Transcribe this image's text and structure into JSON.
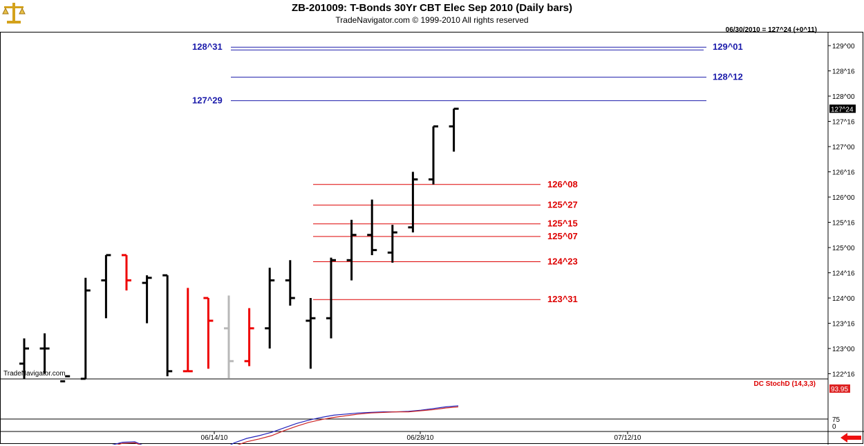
{
  "header": {
    "title": "ZB-201009:  T-Bonds 30Yr CBT Elec Sep 2010  (Daily bars)",
    "subtitle": "TradeNavigator.com © 1999-2010 All rights reserved",
    "status": "06/30/2010 = 127^24 (+0^11)"
  },
  "watermark": "TradeNavigator.com",
  "icons": {
    "logo": "gold-scale-icon",
    "nav_arrow": "red-left-arrow-icon"
  },
  "colors": {
    "up": "#000000",
    "down": "#ee0000",
    "neutral": "#b8b8b8",
    "green": "#22cc22",
    "blue_level": "#1a1aaa",
    "red_level": "#dd0000",
    "stoch_k": "#2222bb",
    "stoch_d": "#cc2222"
  },
  "chart_data": {
    "type": "ohlc",
    "price_unit": "32nds",
    "y_ticks": [
      "129^00",
      "128^16",
      "128^00",
      "127^16",
      "127^00",
      "126^16",
      "126^00",
      "125^16",
      "125^00",
      "124^16",
      "124^00",
      "123^16",
      "123^00",
      "122^16"
    ],
    "y_tick_values": [
      129,
      128.5,
      128,
      127.5,
      127,
      126.5,
      126,
      125.5,
      125,
      124.5,
      124,
      123.5,
      123,
      122.5
    ],
    "last_price_label": "127^24",
    "last_price": 127.75,
    "x_labels": [
      "06/14/10",
      "06/28/10",
      "07/12/10"
    ],
    "bars": [
      {
        "o": 122.7,
        "h": 123.2,
        "l": 122.4,
        "c": 123.0,
        "col": "up"
      },
      {
        "o": 123.0,
        "h": 123.3,
        "l": 122.5,
        "c": 123.0,
        "col": "up"
      },
      {
        "o": 122.35,
        "h": 122.4,
        "l": 122.1,
        "c": 122.45,
        "col": "up"
      },
      {
        "o": 122.4,
        "h": 124.4,
        "l": 122.2,
        "c": 124.15,
        "col": "up"
      },
      {
        "o": 124.35,
        "h": 124.85,
        "l": 123.6,
        "c": 124.85,
        "col": "up"
      },
      {
        "o": 124.85,
        "h": 124.85,
        "l": 124.15,
        "c": 124.35,
        "col": "down"
      },
      {
        "o": 124.3,
        "h": 124.45,
        "l": 123.5,
        "c": 124.4,
        "col": "up"
      },
      {
        "o": 124.45,
        "h": 124.45,
        "l": 122.45,
        "c": 122.55,
        "col": "up"
      },
      {
        "o": 122.55,
        "h": 124.2,
        "l": 122.55,
        "c": 122.55,
        "col": "down"
      },
      {
        "o": 124.0,
        "h": 124.0,
        "l": 122.6,
        "c": 123.55,
        "col": "down"
      },
      {
        "o": 123.4,
        "h": 124.05,
        "l": 122.4,
        "c": 122.75,
        "col": "neutral"
      },
      {
        "o": 122.75,
        "h": 123.8,
        "l": 122.65,
        "c": 123.4,
        "col": "down"
      },
      {
        "o": 123.4,
        "h": 124.6,
        "l": 123.0,
        "c": 124.35,
        "col": "up"
      },
      {
        "o": 124.35,
        "h": 124.75,
        "l": 123.85,
        "c": 124.0,
        "col": "up"
      },
      {
        "o": 123.55,
        "h": 124.0,
        "l": 122.6,
        "c": 123.6,
        "col": "up"
      },
      {
        "o": 123.6,
        "h": 124.8,
        "l": 123.2,
        "c": 124.75,
        "col": "up"
      },
      {
        "o": 124.75,
        "h": 125.55,
        "l": 124.35,
        "c": 125.25,
        "col": "up"
      },
      {
        "o": 125.25,
        "h": 125.95,
        "l": 124.85,
        "c": 124.95,
        "col": "up"
      },
      {
        "o": 124.9,
        "h": 125.45,
        "l": 124.7,
        "c": 125.3,
        "col": "up"
      },
      {
        "o": 125.4,
        "h": 126.5,
        "l": 125.3,
        "c": 126.35,
        "col": "up"
      },
      {
        "o": 126.35,
        "h": 127.4,
        "l": 126.25,
        "c": 127.4,
        "col": "up"
      },
      {
        "o": 127.4,
        "h": 127.75,
        "l": 126.9,
        "c": 127.75,
        "col": "up"
      }
    ],
    "levels_blue": [
      {
        "label_left": "128^31",
        "label_right": "129^01",
        "value": 128.97
      },
      {
        "label_left": "",
        "label_right": "128^12",
        "value": 128.375
      },
      {
        "label_left": "127^29",
        "label_right": "",
        "value": 127.91
      }
    ],
    "levels_red": [
      {
        "label": "126^08",
        "value": 126.25
      },
      {
        "label": "125^27",
        "value": 125.84
      },
      {
        "label": "125^15",
        "value": 125.47
      },
      {
        "label": "125^07",
        "value": 125.22
      },
      {
        "label": "124^23",
        "value": 124.72
      },
      {
        "label": "123^31",
        "value": 123.97
      }
    ],
    "indicator": {
      "label": "DC StochD (14,3,3)",
      "last_value": "93.95",
      "y_ticks": [
        "75",
        "0"
      ],
      "k": [
        20,
        20,
        19,
        17,
        16,
        16,
        19,
        27,
        33,
        34,
        24,
        18,
        16,
        14,
        13,
        15,
        20,
        32,
        40,
        45,
        51,
        59,
        67,
        73,
        78,
        82,
        84,
        86,
        87,
        88,
        88,
        89,
        91,
        94,
        97,
        99
      ],
      "d": [
        20,
        20,
        20,
        18,
        17,
        16,
        18,
        25,
        31,
        32,
        24,
        19,
        16,
        14,
        13,
        14,
        17,
        26,
        34,
        39,
        45,
        54,
        62,
        69,
        74,
        78,
        81,
        84,
        86,
        87,
        88,
        88,
        90,
        92,
        95,
        97
      ]
    }
  }
}
